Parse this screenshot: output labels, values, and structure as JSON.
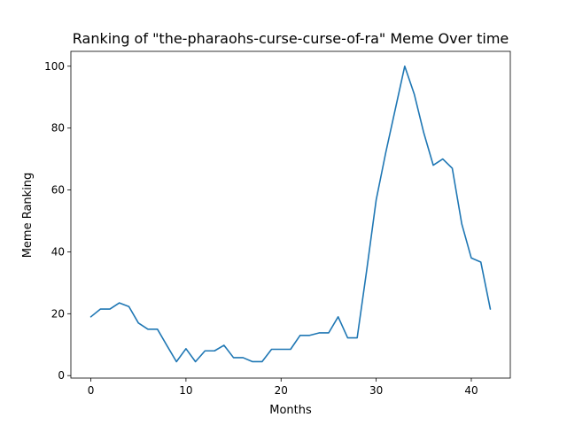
{
  "chart_data": {
    "type": "line",
    "title": "Ranking of \"the-pharaohs-curse-curse-of-ra\" Meme Over time",
    "xlabel": "Months",
    "ylabel": "Meme Ranking",
    "xlim": [
      -2.1,
      44.1
    ],
    "ylim": [
      -0.8,
      104.8
    ],
    "xticks": [
      0,
      10,
      20,
      30,
      40
    ],
    "yticks": [
      0,
      20,
      40,
      60,
      80,
      100
    ],
    "grid": false,
    "series": [
      {
        "color": "#1f77b4",
        "x": [
          0,
          1,
          2,
          3,
          4,
          5,
          6,
          7,
          8,
          9,
          10,
          11,
          12,
          13,
          14,
          15,
          16,
          17,
          18,
          19,
          20,
          21,
          22,
          23,
          24,
          25,
          26,
          27,
          28,
          29,
          30,
          31,
          32,
          33,
          34,
          35,
          36,
          37,
          38,
          39,
          40,
          41,
          42
        ],
        "y": [
          19,
          21.5,
          21.5,
          23.5,
          22.3,
          17,
          15,
          15,
          9.7,
          4.5,
          8.7,
          4.5,
          8,
          8,
          9.8,
          5.8,
          5.8,
          4.5,
          4.5,
          8.5,
          8.5,
          8.5,
          13,
          13,
          13.8,
          13.8,
          19,
          12.2,
          12.2,
          34,
          56.8,
          72,
          86,
          100,
          91,
          78.5,
          68,
          70,
          67,
          49,
          38,
          36.7,
          21.5
        ]
      }
    ]
  }
}
